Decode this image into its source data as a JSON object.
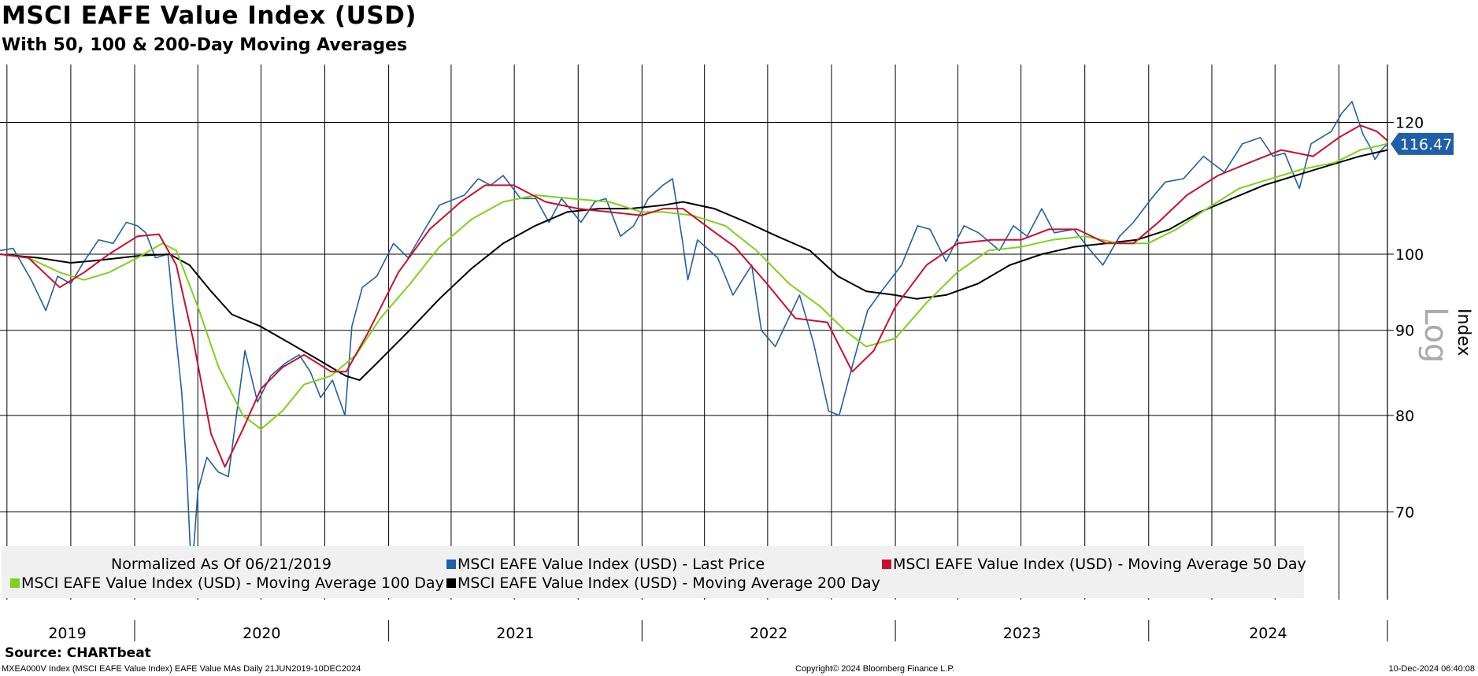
{
  "title": "MSCI EAFE Value Index (USD)",
  "subtitle": "With 50, 100 & 200-Day Moving Averages",
  "legend": {
    "note": "Normalized As Of 06/21/2019",
    "last_price": "MSCI EAFE Value Index (USD) - Last Price",
    "ma50": "MSCI EAFE Value Index (USD) - Moving Average 50 Day",
    "ma100": "MSCI EAFE Value Index (USD) - Moving Average 100 Day",
    "ma200": "MSCI EAFE Value Index (USD) - Moving Average 200 Day"
  },
  "source": "Source: CHARTbeat",
  "footer": {
    "left": "MXEA000V Index (MSCI EAFE Value Index) EAFE Value MAs  Daily 21JUN2019-10DEC2024",
    "center": "Copyright© 2024 Bloomberg Finance L.P.",
    "right": "10-Dec-2024 06:40:08"
  },
  "chart_data": {
    "type": "line",
    "title": "MSCI EAFE Value Index (USD)",
    "subtitle": "With 50, 100 & 200-Day Moving Averages",
    "xlabel": "",
    "ylabel": "Index",
    "scale_label": "Log",
    "y_scale": "log",
    "ylim": [
      62,
      130
    ],
    "xlim": [
      "2019-06-21",
      "2024-12-10"
    ],
    "y_ticks": [
      70,
      80,
      90,
      100,
      120
    ],
    "x_tick_labels": [
      "2019",
      "2020",
      "2021",
      "2022",
      "2023",
      "2024"
    ],
    "last_value_label": "116.47",
    "grid": true,
    "legend_position": "bottom",
    "colors": {
      "last_price": "#1f5fa8",
      "ma50": "#c8102e",
      "ma100": "#7fd11b",
      "ma200": "#000000",
      "value_tag": "#1f5fa8"
    },
    "series": [
      {
        "name": "MSCI EAFE Value Index (USD) - Last Price",
        "color": "#1f5fa8",
        "points": [
          [
            "2019-06-21",
            100.5
          ],
          [
            "2019-07-10",
            100.8
          ],
          [
            "2019-08-05",
            96.5
          ],
          [
            "2019-08-26",
            92.5
          ],
          [
            "2019-09-12",
            97.0
          ],
          [
            "2019-10-01",
            96.0
          ],
          [
            "2019-10-20",
            99.0
          ],
          [
            "2019-11-10",
            102.0
          ],
          [
            "2019-12-01",
            101.5
          ],
          [
            "2019-12-20",
            104.5
          ],
          [
            "2020-01-05",
            104.0
          ],
          [
            "2020-01-17",
            103.0
          ],
          [
            "2020-01-31",
            99.5
          ],
          [
            "2020-02-18",
            100.0
          ],
          [
            "2020-02-28",
            90.5
          ],
          [
            "2020-03-09",
            82.5
          ],
          [
            "2020-03-16",
            74.0
          ],
          [
            "2020-03-23",
            64.0
          ],
          [
            "2020-04-01",
            72.0
          ],
          [
            "2020-04-14",
            75.5
          ],
          [
            "2020-04-30",
            74.0
          ],
          [
            "2020-05-15",
            73.5
          ],
          [
            "2020-06-08",
            87.5
          ],
          [
            "2020-06-26",
            81.5
          ],
          [
            "2020-07-15",
            84.5
          ],
          [
            "2020-08-05",
            86.0
          ],
          [
            "2020-08-25",
            87.0
          ],
          [
            "2020-09-10",
            85.0
          ],
          [
            "2020-09-25",
            82.0
          ],
          [
            "2020-10-12",
            84.0
          ],
          [
            "2020-10-30",
            80.0
          ],
          [
            "2020-11-09",
            90.5
          ],
          [
            "2020-11-24",
            95.5
          ],
          [
            "2020-12-15",
            97.0
          ],
          [
            "2021-01-08",
            101.5
          ],
          [
            "2021-01-29",
            99.5
          ],
          [
            "2021-02-25",
            104.0
          ],
          [
            "2021-03-15",
            107.0
          ],
          [
            "2021-04-20",
            108.5
          ],
          [
            "2021-05-10",
            111.0
          ],
          [
            "2021-05-28",
            110.0
          ],
          [
            "2021-06-15",
            111.5
          ],
          [
            "2021-07-10",
            108.0
          ],
          [
            "2021-08-01",
            108.0
          ],
          [
            "2021-08-20",
            104.5
          ],
          [
            "2021-09-07",
            108.0
          ],
          [
            "2021-10-05",
            104.5
          ],
          [
            "2021-10-25",
            107.5
          ],
          [
            "2021-11-10",
            108.0
          ],
          [
            "2021-12-01",
            102.5
          ],
          [
            "2021-12-20",
            104.0
          ],
          [
            "2022-01-10",
            108.0
          ],
          [
            "2022-01-31",
            110.0
          ],
          [
            "2022-02-14",
            111.0
          ],
          [
            "2022-02-28",
            102.0
          ],
          [
            "2022-03-08",
            96.5
          ],
          [
            "2022-03-22",
            102.0
          ],
          [
            "2022-04-20",
            99.5
          ],
          [
            "2022-05-12",
            94.5
          ],
          [
            "2022-06-08",
            98.5
          ],
          [
            "2022-06-22",
            90.0
          ],
          [
            "2022-07-12",
            88.0
          ],
          [
            "2022-08-16",
            94.5
          ],
          [
            "2022-09-05",
            88.5
          ],
          [
            "2022-09-27",
            80.5
          ],
          [
            "2022-10-12",
            80.0
          ],
          [
            "2022-11-01",
            86.0
          ],
          [
            "2022-11-22",
            92.5
          ],
          [
            "2022-12-12",
            95.0
          ],
          [
            "2023-01-10",
            98.5
          ],
          [
            "2023-02-02",
            104.0
          ],
          [
            "2023-02-20",
            103.5
          ],
          [
            "2023-03-15",
            99.0
          ],
          [
            "2023-04-10",
            104.0
          ],
          [
            "2023-05-01",
            103.0
          ],
          [
            "2023-05-31",
            100.5
          ],
          [
            "2023-06-20",
            104.0
          ],
          [
            "2023-07-10",
            102.5
          ],
          [
            "2023-07-31",
            106.5
          ],
          [
            "2023-08-18",
            103.0
          ],
          [
            "2023-09-15",
            103.5
          ],
          [
            "2023-10-05",
            101.0
          ],
          [
            "2023-10-27",
            98.5
          ],
          [
            "2023-11-20",
            102.5
          ],
          [
            "2023-12-10",
            104.5
          ],
          [
            "2024-01-05",
            108.0
          ],
          [
            "2024-01-25",
            110.5
          ],
          [
            "2024-02-20",
            111.0
          ],
          [
            "2024-03-20",
            114.5
          ],
          [
            "2024-04-19",
            112.0
          ],
          [
            "2024-05-15",
            116.5
          ],
          [
            "2024-06-10",
            117.5
          ],
          [
            "2024-06-28",
            114.5
          ],
          [
            "2024-07-15",
            115.0
          ],
          [
            "2024-08-05",
            109.5
          ],
          [
            "2024-08-22",
            116.5
          ],
          [
            "2024-09-20",
            118.5
          ],
          [
            "2024-10-05",
            121.5
          ],
          [
            "2024-10-20",
            123.5
          ],
          [
            "2024-11-05",
            118.0
          ],
          [
            "2024-11-15",
            116.0
          ],
          [
            "2024-11-22",
            114.0
          ],
          [
            "2024-12-01",
            115.5
          ],
          [
            "2024-12-10",
            116.47
          ]
        ]
      },
      {
        "name": "MSCI EAFE Value Index (USD) - Moving Average 50 Day",
        "color": "#c8102e",
        "points": [
          [
            "2019-06-21",
            100.0
          ],
          [
            "2019-08-01",
            99.5
          ],
          [
            "2019-09-15",
            95.5
          ],
          [
            "2019-10-20",
            97.5
          ],
          [
            "2019-11-25",
            100.0
          ],
          [
            "2020-01-05",
            102.5
          ],
          [
            "2020-02-05",
            102.8
          ],
          [
            "2020-03-01",
            98.5
          ],
          [
            "2020-03-25",
            89.0
          ],
          [
            "2020-04-20",
            78.0
          ],
          [
            "2020-05-10",
            74.5
          ],
          [
            "2020-06-05",
            78.5
          ],
          [
            "2020-07-01",
            83.0
          ],
          [
            "2020-08-01",
            85.5
          ],
          [
            "2020-09-01",
            87.0
          ],
          [
            "2020-10-10",
            85.0
          ],
          [
            "2020-11-01",
            85.0
          ],
          [
            "2020-12-01",
            89.5
          ],
          [
            "2021-01-15",
            97.5
          ],
          [
            "2021-03-01",
            103.5
          ],
          [
            "2021-04-15",
            107.5
          ],
          [
            "2021-05-20",
            110.0
          ],
          [
            "2021-06-30",
            110.0
          ],
          [
            "2021-08-15",
            107.5
          ],
          [
            "2021-10-01",
            106.5
          ],
          [
            "2021-11-15",
            106.0
          ],
          [
            "2021-12-31",
            105.5
          ],
          [
            "2022-02-01",
            106.5
          ],
          [
            "2022-03-01",
            106.5
          ],
          [
            "2022-04-10",
            103.5
          ],
          [
            "2022-05-15",
            101.0
          ],
          [
            "2022-06-30",
            96.0
          ],
          [
            "2022-08-10",
            91.5
          ],
          [
            "2022-09-25",
            91.0
          ],
          [
            "2022-10-31",
            85.0
          ],
          [
            "2022-12-01",
            87.5
          ],
          [
            "2023-01-01",
            93.0
          ],
          [
            "2023-02-15",
            98.5
          ],
          [
            "2023-04-01",
            101.5
          ],
          [
            "2023-05-20",
            102.0
          ],
          [
            "2023-07-01",
            102.0
          ],
          [
            "2023-08-10",
            103.5
          ],
          [
            "2023-09-20",
            103.5
          ],
          [
            "2023-11-01",
            101.5
          ],
          [
            "2023-12-10",
            101.5
          ],
          [
            "2024-01-15",
            104.5
          ],
          [
            "2024-02-25",
            108.5
          ],
          [
            "2024-04-10",
            111.5
          ],
          [
            "2024-05-25",
            113.5
          ],
          [
            "2024-07-10",
            115.5
          ],
          [
            "2024-08-25",
            114.5
          ],
          [
            "2024-10-01",
            117.5
          ],
          [
            "2024-11-01",
            119.5
          ],
          [
            "2024-11-25",
            118.5
          ],
          [
            "2024-12-10",
            117.0
          ]
        ]
      },
      {
        "name": "MSCI EAFE Value Index (USD) - Moving Average 100 Day",
        "color": "#7fd11b",
        "points": [
          [
            "2019-06-21",
            100.0
          ],
          [
            "2019-08-01",
            99.5
          ],
          [
            "2019-09-15",
            97.5
          ],
          [
            "2019-10-20",
            96.5
          ],
          [
            "2019-11-25",
            97.5
          ],
          [
            "2020-01-05",
            99.5
          ],
          [
            "2020-02-10",
            101.5
          ],
          [
            "2020-03-01",
            100.5
          ],
          [
            "2020-04-01",
            93.0
          ],
          [
            "2020-05-01",
            85.5
          ],
          [
            "2020-06-05",
            80.0
          ],
          [
            "2020-07-01",
            78.5
          ],
          [
            "2020-08-01",
            80.5
          ],
          [
            "2020-09-01",
            83.5
          ],
          [
            "2020-10-10",
            84.5
          ],
          [
            "2020-11-15",
            87.0
          ],
          [
            "2020-12-20",
            91.5
          ],
          [
            "2021-02-01",
            96.0
          ],
          [
            "2021-03-15",
            101.0
          ],
          [
            "2021-05-01",
            105.0
          ],
          [
            "2021-06-15",
            107.5
          ],
          [
            "2021-08-01",
            108.5
          ],
          [
            "2021-09-20",
            108.0
          ],
          [
            "2021-11-15",
            107.5
          ],
          [
            "2021-12-31",
            106.0
          ],
          [
            "2022-02-01",
            106.0
          ],
          [
            "2022-03-15",
            105.5
          ],
          [
            "2022-05-01",
            104.0
          ],
          [
            "2022-06-15",
            100.5
          ],
          [
            "2022-08-01",
            96.0
          ],
          [
            "2022-09-15",
            93.0
          ],
          [
            "2022-10-20",
            90.0
          ],
          [
            "2022-11-20",
            88.0
          ],
          [
            "2023-01-01",
            89.0
          ],
          [
            "2023-02-15",
            93.5
          ],
          [
            "2023-03-31",
            97.5
          ],
          [
            "2023-05-15",
            100.5
          ],
          [
            "2023-07-01",
            101.0
          ],
          [
            "2023-08-15",
            102.0
          ],
          [
            "2023-10-01",
            102.5
          ],
          [
            "2023-11-20",
            101.5
          ],
          [
            "2023-12-31",
            101.5
          ],
          [
            "2024-02-10",
            103.5
          ],
          [
            "2024-03-25",
            106.5
          ],
          [
            "2024-05-10",
            109.5
          ],
          [
            "2024-06-25",
            111.0
          ],
          [
            "2024-08-10",
            112.5
          ],
          [
            "2024-09-25",
            113.5
          ],
          [
            "2024-11-01",
            115.5
          ],
          [
            "2024-12-10",
            116.5
          ]
        ]
      },
      {
        "name": "MSCI EAFE Value Index (USD) - Moving Average 200 Day",
        "color": "#000000",
        "points": [
          [
            "2019-06-21",
            100.0
          ],
          [
            "2019-08-15",
            99.5
          ],
          [
            "2019-10-01",
            98.8
          ],
          [
            "2019-11-15",
            99.2
          ],
          [
            "2020-01-10",
            99.8
          ],
          [
            "2020-02-20",
            100.0
          ],
          [
            "2020-03-20",
            98.5
          ],
          [
            "2020-04-20",
            95.0
          ],
          [
            "2020-05-20",
            92.0
          ],
          [
            "2020-06-30",
            90.5
          ],
          [
            "2020-08-10",
            88.5
          ],
          [
            "2020-09-20",
            86.5
          ],
          [
            "2020-10-31",
            84.5
          ],
          [
            "2020-11-20",
            84.0
          ],
          [
            "2020-12-15",
            86.0
          ],
          [
            "2021-01-31",
            90.0
          ],
          [
            "2021-03-15",
            94.0
          ],
          [
            "2021-04-30",
            98.0
          ],
          [
            "2021-06-15",
            101.5
          ],
          [
            "2021-07-31",
            104.0
          ],
          [
            "2021-09-15",
            106.0
          ],
          [
            "2021-10-31",
            106.5
          ],
          [
            "2021-12-15",
            106.5
          ],
          [
            "2022-01-31",
            107.0
          ],
          [
            "2022-03-01",
            107.5
          ],
          [
            "2022-04-15",
            106.5
          ],
          [
            "2022-06-01",
            104.5
          ],
          [
            "2022-07-15",
            102.5
          ],
          [
            "2022-08-31",
            100.5
          ],
          [
            "2022-10-10",
            97.0
          ],
          [
            "2022-11-20",
            95.0
          ],
          [
            "2022-12-31",
            94.5
          ],
          [
            "2023-02-01",
            94.0
          ],
          [
            "2023-03-15",
            94.5
          ],
          [
            "2023-04-30",
            96.0
          ],
          [
            "2023-06-15",
            98.5
          ],
          [
            "2023-07-31",
            100.0
          ],
          [
            "2023-09-15",
            101.0
          ],
          [
            "2023-10-31",
            101.5
          ],
          [
            "2023-12-15",
            102.0
          ],
          [
            "2024-01-31",
            103.5
          ],
          [
            "2024-03-15",
            106.0
          ],
          [
            "2024-04-30",
            108.0
          ],
          [
            "2024-06-15",
            110.0
          ],
          [
            "2024-07-31",
            111.5
          ],
          [
            "2024-09-15",
            113.0
          ],
          [
            "2024-10-31",
            114.5
          ],
          [
            "2024-12-10",
            115.5
          ]
        ]
      }
    ]
  }
}
